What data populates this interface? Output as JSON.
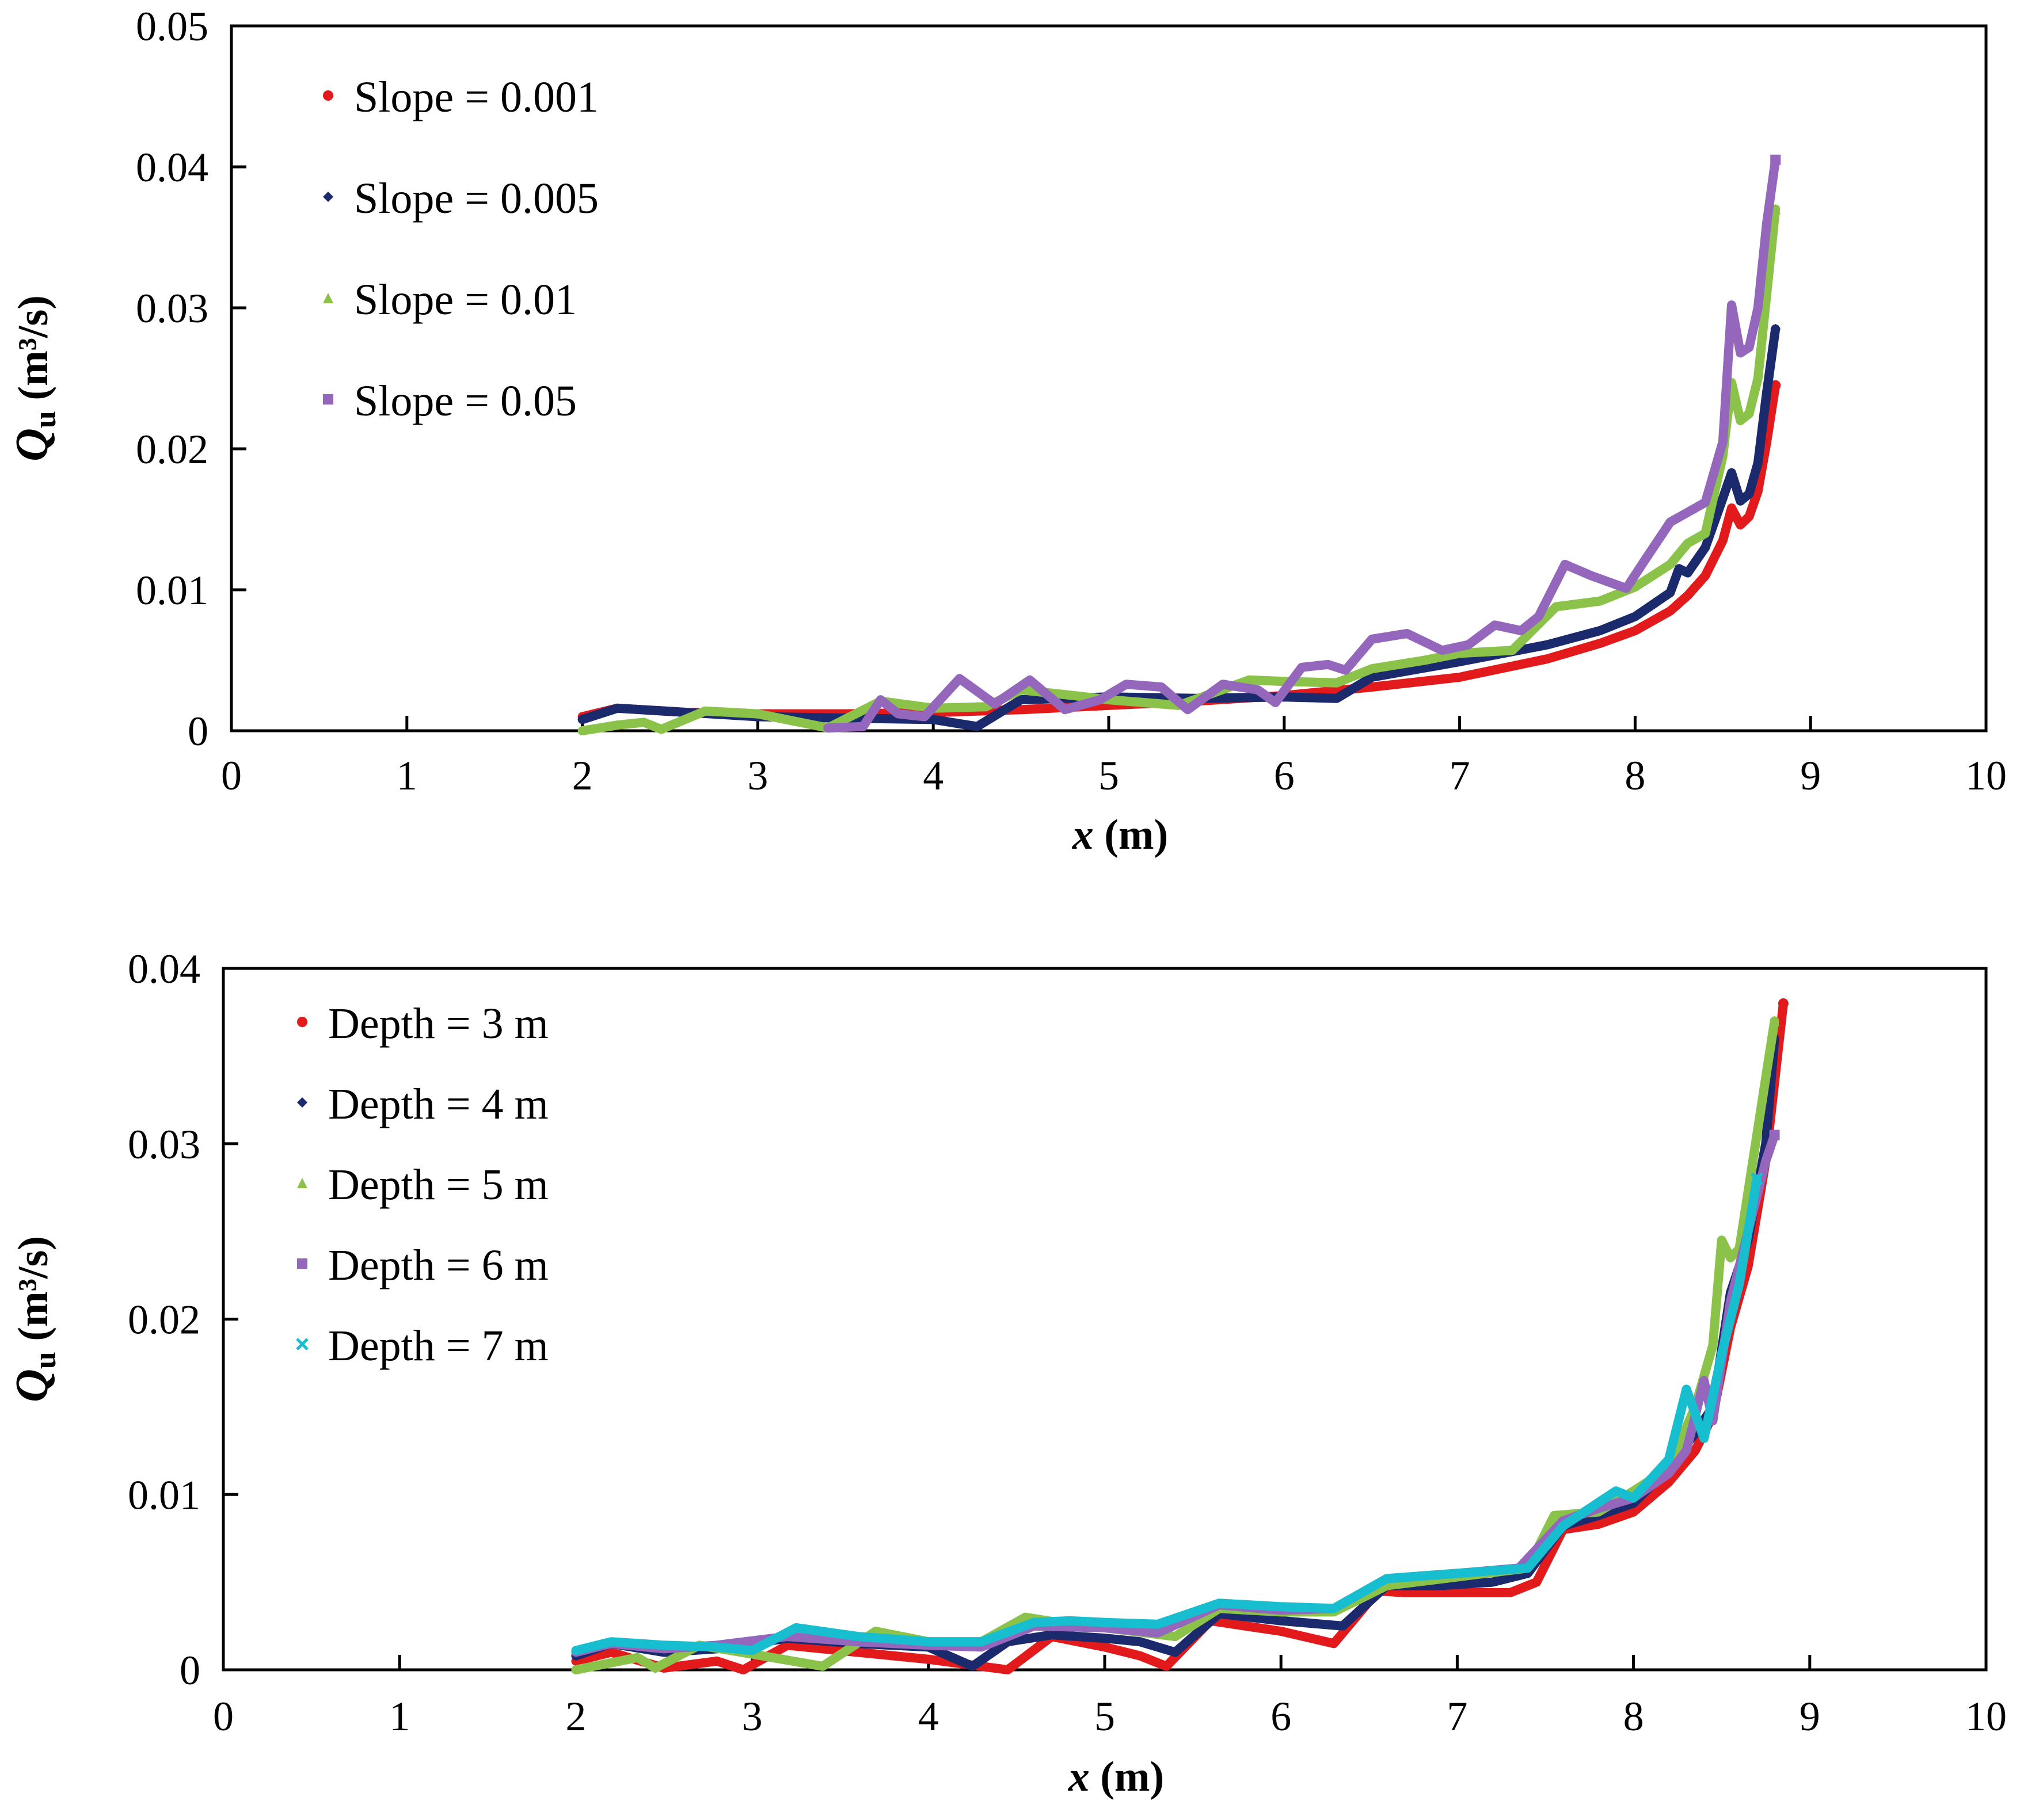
{
  "chart_data": [
    {
      "type": "line",
      "xlabel": "x (m)",
      "ylabel": "Qu (m³/s)",
      "ylabel_main": "Q",
      "ylabel_sub": "u",
      "ylabel_units": "(m³/s)",
      "xlabel_var": "x",
      "xlabel_units": "(m)",
      "xlim": [
        0,
        10
      ],
      "ylim": [
        0,
        0.05
      ],
      "x_ticks": [
        "0",
        "1",
        "2",
        "3",
        "4",
        "5",
        "6",
        "7",
        "8",
        "9",
        "10"
      ],
      "y_ticks": [
        "0",
        "0.01",
        "0.02",
        "0.03",
        "0.04",
        "0.05"
      ],
      "legend_position": "top-left",
      "series": [
        {
          "name": "Slope = 0.001",
          "color": "#e31a1c",
          "marker": "circle",
          "x": [
            2.0,
            2.2,
            2.6,
            3.0,
            3.5,
            4.0,
            4.5,
            5.0,
            5.5,
            6.0,
            6.5,
            7.0,
            7.5,
            7.8,
            8.0,
            8.2,
            8.3,
            8.4,
            8.5,
            8.55,
            8.6,
            8.65,
            8.7,
            8.75,
            8.8
          ],
          "y": [
            0.001,
            0.0016,
            0.0013,
            0.0012,
            0.0012,
            0.0013,
            0.0015,
            0.0018,
            0.0021,
            0.0025,
            0.0031,
            0.0038,
            0.0051,
            0.0062,
            0.0071,
            0.0085,
            0.0096,
            0.011,
            0.0135,
            0.0158,
            0.0146,
            0.0152,
            0.017,
            0.0205,
            0.0245
          ]
        },
        {
          "name": "Slope = 0.005",
          "color": "#1a2a6c",
          "marker": "diamond",
          "x": [
            2.0,
            2.2,
            2.6,
            3.0,
            3.5,
            4.0,
            4.25,
            4.5,
            5.0,
            5.5,
            6.0,
            6.3,
            6.5,
            7.0,
            7.5,
            7.8,
            8.0,
            8.2,
            8.25,
            8.3,
            8.4,
            8.5,
            8.55,
            8.6,
            8.65,
            8.7,
            8.75,
            8.8
          ],
          "y": [
            0.0008,
            0.0016,
            0.0013,
            0.001,
            0.0009,
            0.0008,
            0.0003,
            0.0022,
            0.0024,
            0.0023,
            0.0024,
            0.0023,
            0.0038,
            0.0049,
            0.0061,
            0.0071,
            0.0081,
            0.0098,
            0.0115,
            0.0112,
            0.013,
            0.0165,
            0.0183,
            0.0163,
            0.0168,
            0.019,
            0.024,
            0.0285
          ]
        },
        {
          "name": "Slope = 0.01",
          "color": "#8bc34a",
          "marker": "triangle",
          "x": [
            2.0,
            2.2,
            2.35,
            2.45,
            2.7,
            3.0,
            3.4,
            3.7,
            4.0,
            4.3,
            4.5,
            4.8,
            5.0,
            5.4,
            5.8,
            6.0,
            6.3,
            6.5,
            6.8,
            7.0,
            7.3,
            7.55,
            7.8,
            8.0,
            8.2,
            8.3,
            8.4,
            8.5,
            8.55,
            8.6,
            8.65,
            8.7,
            8.75,
            8.8
          ],
          "y": [
            0.0,
            0.0004,
            0.0006,
            0.0001,
            0.0014,
            0.0012,
            0.0002,
            0.0021,
            0.0016,
            0.0017,
            0.0029,
            0.0025,
            0.0022,
            0.0018,
            0.0036,
            0.0035,
            0.0034,
            0.0044,
            0.005,
            0.0055,
            0.0057,
            0.0088,
            0.0092,
            0.0102,
            0.0118,
            0.0133,
            0.014,
            0.0195,
            0.0247,
            0.022,
            0.0225,
            0.025,
            0.031,
            0.037
          ]
        },
        {
          "name": "Slope = 0.05",
          "color": "#9467bd",
          "marker": "square",
          "x": [
            3.4,
            3.6,
            3.7,
            3.8,
            3.95,
            4.15,
            4.35,
            4.55,
            4.75,
            4.95,
            5.1,
            5.3,
            5.45,
            5.65,
            5.85,
            5.95,
            6.1,
            6.25,
            6.35,
            6.5,
            6.7,
            6.9,
            7.05,
            7.2,
            7.35,
            7.45,
            7.6,
            7.75,
            7.95,
            8.05,
            8.2,
            8.3,
            8.4,
            8.5,
            8.55,
            8.6,
            8.65,
            8.7,
            8.75,
            8.8
          ],
          "y": [
            0.0002,
            0.0003,
            0.0022,
            0.0012,
            0.001,
            0.0037,
            0.0019,
            0.0036,
            0.0015,
            0.0022,
            0.0033,
            0.0031,
            0.0015,
            0.0033,
            0.0029,
            0.002,
            0.0045,
            0.0047,
            0.0043,
            0.0065,
            0.0069,
            0.0057,
            0.0061,
            0.0075,
            0.0071,
            0.0081,
            0.0118,
            0.011,
            0.0101,
            0.012,
            0.0148,
            0.0155,
            0.0162,
            0.0205,
            0.0302,
            0.0268,
            0.0272,
            0.03,
            0.036,
            0.0405
          ]
        }
      ]
    },
    {
      "type": "line",
      "xlabel": "x (m)",
      "ylabel": "Qu (m³/s)",
      "ylabel_main": "Q",
      "ylabel_sub": "u",
      "ylabel_units": "(m³/s)",
      "xlabel_var": "x",
      "xlabel_units": "(m)",
      "xlim": [
        0,
        10
      ],
      "ylim": [
        0,
        0.04
      ],
      "x_ticks": [
        "0",
        "1",
        "2",
        "3",
        "4",
        "5",
        "6",
        "7",
        "8",
        "9",
        "10"
      ],
      "y_ticks": [
        "0",
        "0.01",
        "0.02",
        "0.03",
        "0.04"
      ],
      "legend_position": "top-left",
      "series": [
        {
          "name": "Depth = 3 m",
          "color": "#e31a1c",
          "marker": "circle",
          "x": [
            2.0,
            2.2,
            2.5,
            2.8,
            2.95,
            3.2,
            3.6,
            4.0,
            4.3,
            4.45,
            4.7,
            5.0,
            5.2,
            5.35,
            5.6,
            6.0,
            6.3,
            6.55,
            6.7,
            7.0,
            7.3,
            7.45,
            7.6,
            7.8,
            8.0,
            8.2,
            8.35,
            8.45,
            8.55,
            8.65,
            8.75,
            8.85
          ],
          "y": [
            0.0005,
            0.001,
            0.0001,
            0.0005,
            0.0,
            0.0014,
            0.001,
            0.0006,
            0.0002,
            0.0,
            0.0019,
            0.0013,
            0.0008,
            0.0002,
            0.0028,
            0.0022,
            0.0015,
            0.0045,
            0.0044,
            0.0044,
            0.0044,
            0.005,
            0.008,
            0.0083,
            0.009,
            0.0107,
            0.0125,
            0.0145,
            0.0195,
            0.023,
            0.029,
            0.038
          ]
        },
        {
          "name": "Depth = 4 m",
          "color": "#1a2a6c",
          "marker": "diamond",
          "x": [
            2.0,
            2.2,
            2.5,
            2.8,
            3.2,
            3.6,
            4.0,
            4.25,
            4.45,
            4.7,
            5.0,
            5.2,
            5.4,
            5.65,
            6.0,
            6.35,
            6.6,
            6.9,
            7.2,
            7.4,
            7.6,
            7.8,
            8.0,
            8.2,
            8.35,
            8.45,
            8.55,
            8.65,
            8.75,
            8.8
          ],
          "y": [
            0.0008,
            0.0015,
            0.001,
            0.0012,
            0.0018,
            0.0015,
            0.0013,
            0.0002,
            0.0016,
            0.002,
            0.0018,
            0.0016,
            0.001,
            0.0032,
            0.0028,
            0.0025,
            0.0048,
            0.0048,
            0.005,
            0.0055,
            0.0082,
            0.0088,
            0.0095,
            0.0115,
            0.0135,
            0.015,
            0.0215,
            0.0245,
            0.03,
            0.036
          ]
        },
        {
          "name": "Depth = 5 m",
          "color": "#8bc34a",
          "marker": "triangle",
          "x": [
            2.0,
            2.2,
            2.35,
            2.45,
            2.7,
            3.0,
            3.4,
            3.7,
            4.0,
            4.3,
            4.55,
            4.8,
            5.0,
            5.4,
            5.65,
            6.0,
            6.3,
            6.6,
            7.0,
            7.4,
            7.55,
            7.8,
            8.0,
            8.2,
            8.35,
            8.45,
            8.5,
            8.55,
            8.6,
            8.7,
            8.8
          ],
          "y": [
            0.0,
            0.0004,
            0.0007,
            0.0001,
            0.0014,
            0.0009,
            0.0002,
            0.0022,
            0.0016,
            0.0016,
            0.003,
            0.0026,
            0.0024,
            0.0019,
            0.0035,
            0.0033,
            0.0033,
            0.0048,
            0.0053,
            0.0058,
            0.0088,
            0.009,
            0.0102,
            0.0115,
            0.015,
            0.0185,
            0.0245,
            0.0235,
            0.024,
            0.0305,
            0.037
          ]
        },
        {
          "name": "Depth = 6 m",
          "color": "#9467bd",
          "marker": "square",
          "x": [
            2.0,
            2.2,
            2.5,
            2.8,
            3.2,
            3.6,
            4.0,
            4.3,
            4.6,
            5.0,
            5.3,
            5.65,
            6.0,
            6.3,
            6.6,
            7.0,
            7.35,
            7.6,
            7.8,
            8.0,
            8.2,
            8.3,
            8.4,
            8.45,
            8.55,
            8.65,
            8.75,
            8.8
          ],
          "y": [
            0.001,
            0.0015,
            0.0012,
            0.0014,
            0.0019,
            0.0016,
            0.0014,
            0.0013,
            0.0025,
            0.0024,
            0.0021,
            0.0037,
            0.0034,
            0.0035,
            0.0052,
            0.0055,
            0.0058,
            0.0085,
            0.0092,
            0.0098,
            0.0112,
            0.0125,
            0.0165,
            0.0142,
            0.021,
            0.025,
            0.029,
            0.0305
          ]
        },
        {
          "name": "Depth = 7 m",
          "color": "#17becf",
          "marker": "x",
          "x": [
            2.0,
            2.2,
            2.5,
            2.8,
            3.0,
            3.25,
            3.6,
            4.0,
            4.3,
            4.6,
            4.8,
            5.0,
            5.3,
            5.65,
            6.0,
            6.3,
            6.6,
            7.0,
            7.4,
            7.6,
            7.9,
            8.0,
            8.2,
            8.3,
            8.4,
            8.5,
            8.6,
            8.7
          ],
          "y": [
            0.0011,
            0.0016,
            0.0014,
            0.0013,
            0.0011,
            0.0024,
            0.0019,
            0.0016,
            0.0016,
            0.0027,
            0.0028,
            0.0027,
            0.0026,
            0.0038,
            0.0036,
            0.0035,
            0.0052,
            0.0055,
            0.0058,
            0.0082,
            0.0102,
            0.0098,
            0.012,
            0.016,
            0.0132,
            0.018,
            0.022,
            0.028
          ]
        }
      ]
    }
  ]
}
